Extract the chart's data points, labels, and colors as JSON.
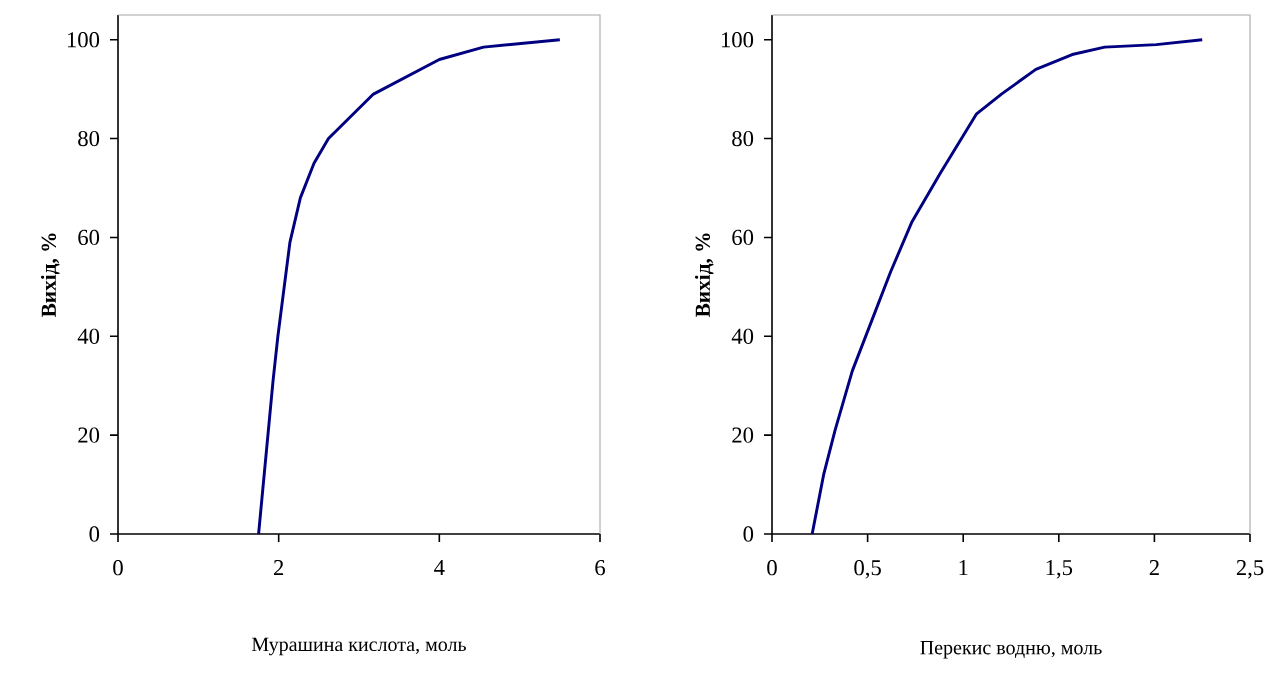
{
  "chart_data": [
    {
      "type": "line",
      "xlabel": "Мурашина кислота, моль",
      "ylabel": "Вихід, %",
      "xlim": [
        0,
        6
      ],
      "ylim": [
        0,
        105
      ],
      "xticks": [
        0,
        2,
        4,
        6
      ],
      "yticks": [
        0,
        20,
        40,
        60,
        80,
        100
      ],
      "series": [
        {
          "color": "#000080",
          "x": [
            1.75,
            1.93,
            1.99,
            2.14,
            2.27,
            2.44,
            2.62,
            3.18,
            4.0,
            4.55,
            5.5
          ],
          "values": [
            0,
            31,
            40,
            59,
            68,
            75,
            80,
            89,
            96,
            98.5,
            100
          ]
        }
      ]
    },
    {
      "type": "line",
      "xlabel": "Перекис водню, моль",
      "ylabel": "Вихід, %",
      "xlim": [
        0,
        2.5
      ],
      "ylim": [
        0,
        105
      ],
      "xticks": [
        0,
        {
          "value": 0.5,
          "label": "0,5"
        },
        1,
        {
          "value": 1.5,
          "label": "1,5"
        },
        2,
        {
          "value": 2.5,
          "label": "2,5"
        }
      ],
      "yticks": [
        0,
        20,
        40,
        60,
        80,
        100
      ],
      "series": [
        {
          "color": "#000080",
          "x": [
            0.21,
            0.27,
            0.33,
            0.42,
            0.51,
            0.62,
            0.73,
            0.88,
            1.07,
            1.2,
            1.38,
            1.57,
            1.74,
            2.01,
            2.25
          ],
          "values": [
            0,
            12,
            21,
            33,
            42,
            53,
            63,
            73,
            85,
            89,
            94,
            97,
            98.5,
            99,
            100
          ]
        }
      ]
    }
  ]
}
